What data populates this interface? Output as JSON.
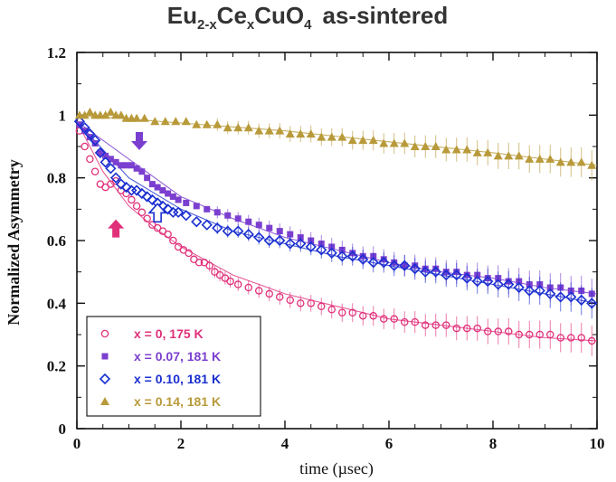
{
  "chart_data": {
    "type": "scatter",
    "title_parts": {
      "base1": "Eu",
      "sub1": "2-x",
      "base2": "Ce",
      "sub2": "x",
      "base3": "CuO",
      "sub3": "4",
      "suffix": "as-sintered"
    },
    "xlabel": "time (µsec)",
    "ylabel": "Normalized Asymmetry",
    "xlim": [
      0,
      10
    ],
    "ylim": [
      0,
      1.2
    ],
    "xticks": [
      0,
      2,
      4,
      6,
      8,
      10
    ],
    "xtick_labels": [
      "0",
      "2",
      "4",
      "6",
      "8",
      "10"
    ],
    "yticks": [
      0,
      0.2,
      0.4,
      0.6,
      0.8,
      1,
      1.2
    ],
    "ytick_labels": [
      "0",
      "0.2",
      "0.4",
      "0.6",
      "0.8",
      "1",
      "1.2"
    ],
    "legend_position": "bottom-left",
    "annotations": [
      {
        "name": "arrow-x0.07",
        "type": "down-arrow-filled",
        "x": 1.2,
        "y": 0.9,
        "color": "#7b3fd0"
      },
      {
        "name": "arrow-x0.10",
        "type": "up-arrow-hollow",
        "x": 1.55,
        "y": 0.7,
        "color": "#1a2fd0"
      },
      {
        "name": "arrow-x0",
        "type": "up-arrow-filled",
        "x": 0.75,
        "y": 0.65,
        "color": "#e0307a"
      }
    ],
    "series": [
      {
        "name": "x = 0, 175 K",
        "color": "#e0307a",
        "marker": "circle",
        "x": [
          0.05,
          0.15,
          0.25,
          0.35,
          0.45,
          0.55,
          0.65,
          0.75,
          0.85,
          0.95,
          1.05,
          1.15,
          1.25,
          1.35,
          1.45,
          1.55,
          1.65,
          1.75,
          1.85,
          1.95,
          2.05,
          2.15,
          2.25,
          2.35,
          2.45,
          2.55,
          2.65,
          2.75,
          2.85,
          2.95,
          3.1,
          3.3,
          3.5,
          3.7,
          3.9,
          4.1,
          4.3,
          4.5,
          4.7,
          4.9,
          5.1,
          5.3,
          5.5,
          5.7,
          5.9,
          6.1,
          6.3,
          6.5,
          6.7,
          6.9,
          7.1,
          7.3,
          7.5,
          7.7,
          7.9,
          8.1,
          8.3,
          8.5,
          8.7,
          8.9,
          9.1,
          9.3,
          9.5,
          9.7,
          9.9
        ],
        "y": [
          0.95,
          0.9,
          0.86,
          0.82,
          0.78,
          0.77,
          0.78,
          0.79,
          0.76,
          0.75,
          0.73,
          0.71,
          0.69,
          0.67,
          0.65,
          0.64,
          0.63,
          0.62,
          0.6,
          0.58,
          0.57,
          0.56,
          0.54,
          0.53,
          0.53,
          0.52,
          0.5,
          0.49,
          0.48,
          0.47,
          0.46,
          0.45,
          0.44,
          0.43,
          0.42,
          0.41,
          0.4,
          0.4,
          0.39,
          0.38,
          0.37,
          0.37,
          0.36,
          0.36,
          0.35,
          0.35,
          0.34,
          0.34,
          0.33,
          0.33,
          0.33,
          0.32,
          0.32,
          0.32,
          0.31,
          0.31,
          0.31,
          0.3,
          0.3,
          0.3,
          0.3,
          0.29,
          0.29,
          0.29,
          0.28
        ],
        "fit": [
          [
            0,
            0.98
          ],
          [
            0.5,
            0.82
          ],
          [
            1,
            0.71
          ],
          [
            1.5,
            0.64
          ],
          [
            2,
            0.58
          ],
          [
            3,
            0.49
          ],
          [
            4,
            0.43
          ],
          [
            5,
            0.39
          ],
          [
            6,
            0.35
          ],
          [
            7,
            0.33
          ],
          [
            8,
            0.31
          ],
          [
            9,
            0.29
          ],
          [
            10,
            0.28
          ]
        ]
      },
      {
        "name": "x = 0.07, 181 K",
        "color": "#7b3fd0",
        "marker": "square",
        "x": [
          0.05,
          0.15,
          0.25,
          0.35,
          0.45,
          0.55,
          0.65,
          0.75,
          0.85,
          0.95,
          1.05,
          1.15,
          1.25,
          1.35,
          1.45,
          1.55,
          1.65,
          1.75,
          1.85,
          1.95,
          2.1,
          2.3,
          2.5,
          2.7,
          2.9,
          3.1,
          3.3,
          3.5,
          3.7,
          3.9,
          4.1,
          4.3,
          4.5,
          4.7,
          4.9,
          5.1,
          5.3,
          5.5,
          5.7,
          5.9,
          6.1,
          6.3,
          6.5,
          6.7,
          6.9,
          7.1,
          7.3,
          7.5,
          7.7,
          7.9,
          8.1,
          8.3,
          8.5,
          8.7,
          8.9,
          9.1,
          9.3,
          9.5,
          9.7,
          9.9
        ],
        "y": [
          0.97,
          0.95,
          0.93,
          0.91,
          0.88,
          0.87,
          0.86,
          0.85,
          0.84,
          0.84,
          0.84,
          0.83,
          0.82,
          0.8,
          0.78,
          0.77,
          0.76,
          0.75,
          0.74,
          0.73,
          0.72,
          0.71,
          0.7,
          0.69,
          0.68,
          0.67,
          0.66,
          0.65,
          0.64,
          0.63,
          0.62,
          0.61,
          0.6,
          0.59,
          0.58,
          0.57,
          0.56,
          0.55,
          0.55,
          0.54,
          0.53,
          0.52,
          0.52,
          0.51,
          0.51,
          0.5,
          0.5,
          0.49,
          0.49,
          0.48,
          0.48,
          0.47,
          0.47,
          0.46,
          0.46,
          0.45,
          0.45,
          0.44,
          0.44,
          0.43
        ],
        "fit": [
          [
            0,
            0.98
          ],
          [
            1,
            0.86
          ],
          [
            2,
            0.74
          ],
          [
            3,
            0.67
          ],
          [
            4,
            0.61
          ],
          [
            5,
            0.57
          ],
          [
            6,
            0.53
          ],
          [
            7,
            0.5
          ],
          [
            8,
            0.48
          ],
          [
            9,
            0.45
          ],
          [
            10,
            0.43
          ]
        ]
      },
      {
        "name": "x = 0.10, 181 K",
        "color": "#1a2fd0",
        "marker": "diamond",
        "x": [
          0.05,
          0.15,
          0.25,
          0.35,
          0.45,
          0.55,
          0.65,
          0.75,
          0.85,
          0.95,
          1.05,
          1.15,
          1.25,
          1.35,
          1.45,
          1.55,
          1.65,
          1.75,
          1.85,
          1.95,
          2.1,
          2.3,
          2.5,
          2.7,
          2.9,
          3.1,
          3.3,
          3.5,
          3.7,
          3.9,
          4.1,
          4.3,
          4.5,
          4.7,
          4.9,
          5.1,
          5.3,
          5.5,
          5.7,
          5.9,
          6.1,
          6.3,
          6.5,
          6.7,
          6.9,
          7.1,
          7.3,
          7.5,
          7.7,
          7.9,
          8.1,
          8.3,
          8.5,
          8.7,
          8.9,
          9.1,
          9.3,
          9.5,
          9.7,
          9.9
        ],
        "y": [
          0.98,
          0.96,
          0.94,
          0.92,
          0.88,
          0.85,
          0.83,
          0.8,
          0.78,
          0.77,
          0.76,
          0.76,
          0.75,
          0.74,
          0.73,
          0.72,
          0.71,
          0.7,
          0.69,
          0.69,
          0.68,
          0.66,
          0.65,
          0.64,
          0.63,
          0.63,
          0.62,
          0.61,
          0.6,
          0.6,
          0.59,
          0.59,
          0.58,
          0.57,
          0.56,
          0.55,
          0.55,
          0.54,
          0.53,
          0.53,
          0.52,
          0.52,
          0.51,
          0.5,
          0.5,
          0.49,
          0.49,
          0.48,
          0.47,
          0.47,
          0.46,
          0.46,
          0.45,
          0.44,
          0.44,
          0.43,
          0.42,
          0.42,
          0.41,
          0.4
        ],
        "fit": [
          [
            0,
            0.98
          ],
          [
            1,
            0.8
          ],
          [
            2,
            0.7
          ],
          [
            3,
            0.63
          ],
          [
            4,
            0.59
          ],
          [
            5,
            0.55
          ],
          [
            6,
            0.52
          ],
          [
            7,
            0.49
          ],
          [
            8,
            0.46
          ],
          [
            9,
            0.43
          ],
          [
            10,
            0.4
          ]
        ]
      },
      {
        "name": "x = 0.14, 181 K",
        "color": "#b89a3a",
        "marker": "triangle",
        "x": [
          0.05,
          0.15,
          0.25,
          0.35,
          0.45,
          0.55,
          0.65,
          0.75,
          0.85,
          0.95,
          1.05,
          1.15,
          1.3,
          1.5,
          1.7,
          1.9,
          2.1,
          2.3,
          2.5,
          2.7,
          2.9,
          3.1,
          3.3,
          3.5,
          3.7,
          3.9,
          4.1,
          4.3,
          4.5,
          4.7,
          4.9,
          5.1,
          5.3,
          5.5,
          5.7,
          5.9,
          6.1,
          6.3,
          6.5,
          6.7,
          6.9,
          7.1,
          7.3,
          7.5,
          7.7,
          7.9,
          8.1,
          8.3,
          8.5,
          8.7,
          8.9,
          9.1,
          9.3,
          9.5,
          9.7,
          9.9
        ],
        "y": [
          1.0,
          1.0,
          1.01,
          1.0,
          1.0,
          1.0,
          1.01,
          1.0,
          1.0,
          0.99,
          0.99,
          0.99,
          0.99,
          0.98,
          0.98,
          0.98,
          0.98,
          0.97,
          0.97,
          0.97,
          0.96,
          0.96,
          0.96,
          0.95,
          0.95,
          0.95,
          0.94,
          0.94,
          0.94,
          0.93,
          0.93,
          0.93,
          0.92,
          0.92,
          0.92,
          0.91,
          0.91,
          0.91,
          0.9,
          0.9,
          0.9,
          0.89,
          0.89,
          0.89,
          0.88,
          0.88,
          0.87,
          0.87,
          0.87,
          0.86,
          0.86,
          0.86,
          0.85,
          0.85,
          0.85,
          0.84
        ],
        "fit": [
          [
            0,
            1.0
          ],
          [
            2,
            0.975
          ],
          [
            4,
            0.95
          ],
          [
            6,
            0.915
          ],
          [
            8,
            0.88
          ],
          [
            10,
            0.84
          ]
        ]
      }
    ]
  }
}
